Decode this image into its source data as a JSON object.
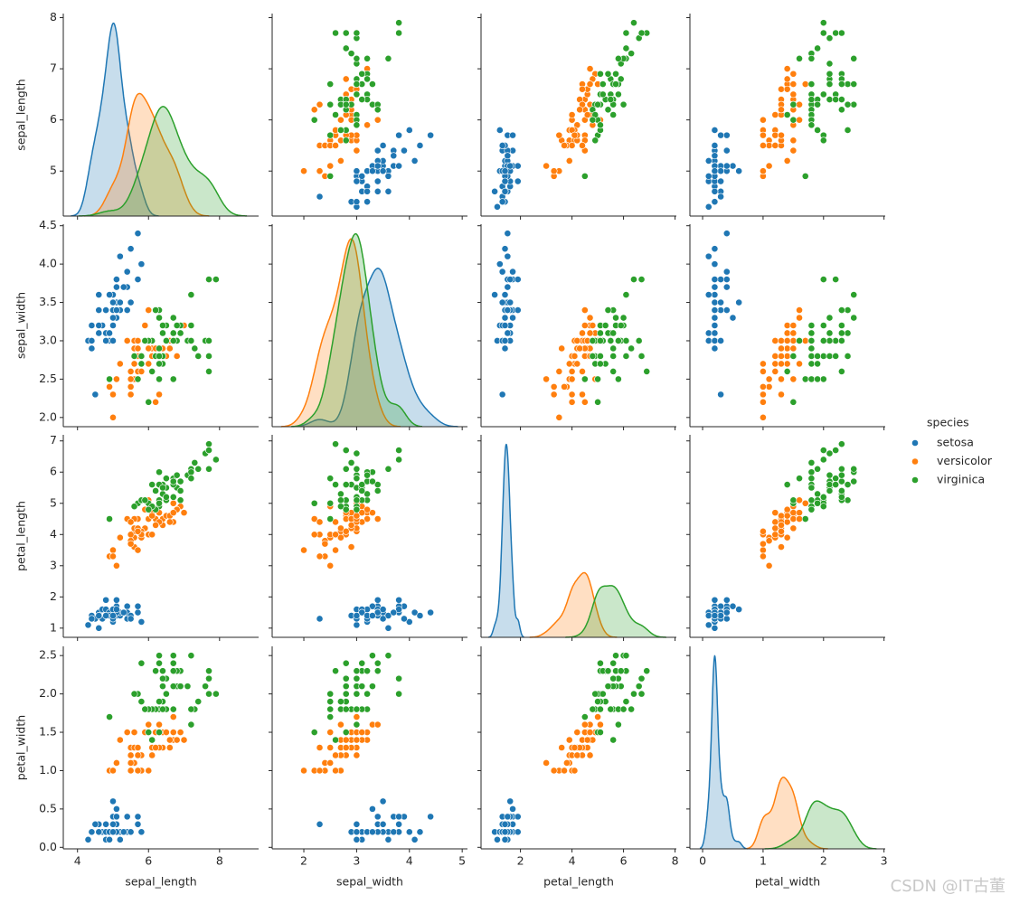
{
  "chart_data": {
    "type": "pairplot",
    "hue_title": "species",
    "watermark": "CSDN @IT古董",
    "vars": [
      {
        "label": "sepal_length",
        "xlim": [
          3.6,
          9.1
        ],
        "xticks": [
          4,
          6,
          8
        ],
        "ylim": [
          4.12,
          8.08
        ],
        "yticks": [
          5,
          6,
          7,
          8
        ]
      },
      {
        "label": "sepal_width",
        "xlim": [
          1.4,
          5.1
        ],
        "xticks": [
          2,
          3,
          4,
          5
        ],
        "ylim": [
          1.88,
          4.52
        ],
        "yticks": [
          {
            "value": 2,
            "label": "2.0"
          },
          {
            "value": 2.5,
            "label": "2.5"
          },
          {
            "value": 3,
            "label": "3.0"
          },
          {
            "value": 3.5,
            "label": "3.5"
          },
          {
            "value": 4,
            "label": "4.0"
          },
          {
            "value": 4.5,
            "label": "4.5"
          }
        ]
      },
      {
        "label": "petal_length",
        "xlim": [
          0.47,
          8.05
        ],
        "xticks": [
          2,
          4,
          6,
          8
        ],
        "ylim": [
          0.705,
          7.195
        ],
        "yticks": [
          1,
          2,
          3,
          4,
          5,
          6,
          7
        ]
      },
      {
        "label": "petal_width",
        "xlim": [
          -0.21,
          3.02
        ],
        "xticks": [
          0,
          1,
          2,
          3
        ],
        "ylim": [
          -0.02,
          2.62
        ],
        "yticks": [
          {
            "value": 0,
            "label": "0.0"
          },
          {
            "value": 0.5,
            "label": "0.5"
          },
          {
            "value": 1,
            "label": "1.0"
          },
          {
            "value": 1.5,
            "label": "1.5"
          },
          {
            "value": 2,
            "label": "2.0"
          },
          {
            "value": 2.5,
            "label": "2.5"
          }
        ]
      }
    ],
    "series": [
      {
        "name": "setosa",
        "color": "#1f77b4",
        "values": [
          [
            5.1,
            4.9,
            4.7,
            4.6,
            5.0,
            5.4,
            4.6,
            5.0,
            4.4,
            4.9,
            5.4,
            4.8,
            4.8,
            4.3,
            5.8,
            5.7,
            5.4,
            5.1,
            5.7,
            5.1,
            5.4,
            5.1,
            4.6,
            5.1,
            4.8,
            5.0,
            5.0,
            5.2,
            5.2,
            4.7,
            4.8,
            5.4,
            5.2,
            5.5,
            4.9,
            5.0,
            5.5,
            4.9,
            4.4,
            5.1,
            5.0,
            4.5,
            4.4,
            5.0,
            5.1,
            4.8,
            5.1,
            4.6,
            5.3,
            5.0
          ],
          [
            3.5,
            3.0,
            3.2,
            3.1,
            3.6,
            3.9,
            3.4,
            3.4,
            2.9,
            3.1,
            3.7,
            3.4,
            3.0,
            3.0,
            4.0,
            4.4,
            3.9,
            3.5,
            3.8,
            3.8,
            3.4,
            3.7,
            3.6,
            3.3,
            3.4,
            3.0,
            3.4,
            3.5,
            3.4,
            3.2,
            3.1,
            3.4,
            4.1,
            4.2,
            3.1,
            3.2,
            3.5,
            3.6,
            3.0,
            3.4,
            3.5,
            2.3,
            3.2,
            3.5,
            3.8,
            3.0,
            3.8,
            3.2,
            3.7,
            3.3
          ],
          [
            1.4,
            1.4,
            1.3,
            1.5,
            1.4,
            1.7,
            1.4,
            1.5,
            1.4,
            1.5,
            1.5,
            1.6,
            1.4,
            1.1,
            1.2,
            1.5,
            1.3,
            1.4,
            1.7,
            1.5,
            1.7,
            1.5,
            1.0,
            1.7,
            1.9,
            1.6,
            1.6,
            1.5,
            1.4,
            1.6,
            1.6,
            1.5,
            1.5,
            1.4,
            1.5,
            1.2,
            1.3,
            1.4,
            1.3,
            1.5,
            1.3,
            1.3,
            1.3,
            1.6,
            1.9,
            1.4,
            1.6,
            1.4,
            1.5,
            1.4
          ],
          [
            0.2,
            0.2,
            0.2,
            0.2,
            0.2,
            0.4,
            0.3,
            0.2,
            0.2,
            0.1,
            0.2,
            0.2,
            0.1,
            0.1,
            0.2,
            0.4,
            0.4,
            0.3,
            0.3,
            0.3,
            0.2,
            0.4,
            0.2,
            0.5,
            0.2,
            0.2,
            0.4,
            0.2,
            0.2,
            0.2,
            0.2,
            0.4,
            0.1,
            0.2,
            0.2,
            0.2,
            0.2,
            0.1,
            0.2,
            0.2,
            0.3,
            0.3,
            0.2,
            0.6,
            0.4,
            0.3,
            0.2,
            0.2,
            0.2,
            0.2
          ]
        ]
      },
      {
        "name": "versicolor",
        "color": "#ff7f0e",
        "values": [
          [
            7.0,
            6.4,
            6.9,
            5.5,
            6.5,
            5.7,
            6.3,
            4.9,
            6.6,
            5.2,
            5.0,
            5.9,
            6.0,
            6.1,
            5.6,
            6.7,
            5.6,
            5.8,
            6.2,
            5.6,
            5.9,
            6.1,
            6.3,
            6.1,
            6.4,
            6.6,
            6.8,
            6.7,
            6.0,
            5.7,
            5.5,
            5.5,
            5.8,
            6.0,
            5.4,
            6.0,
            6.7,
            6.3,
            5.6,
            5.5,
            5.5,
            6.1,
            5.8,
            5.0,
            5.6,
            5.7,
            5.7,
            6.2,
            5.1,
            5.7
          ],
          [
            3.2,
            3.2,
            3.1,
            2.3,
            2.8,
            2.8,
            3.3,
            2.4,
            2.9,
            2.7,
            2.0,
            3.0,
            2.2,
            2.9,
            2.9,
            3.1,
            3.0,
            2.7,
            2.2,
            2.5,
            3.2,
            2.8,
            2.5,
            2.8,
            2.9,
            3.0,
            2.8,
            3.0,
            2.9,
            2.6,
            2.4,
            2.4,
            2.7,
            2.7,
            3.0,
            3.4,
            3.1,
            2.3,
            3.0,
            2.5,
            2.6,
            3.0,
            2.6,
            2.3,
            2.7,
            3.0,
            2.9,
            2.9,
            2.5,
            2.8
          ],
          [
            4.7,
            4.5,
            4.9,
            4.0,
            4.6,
            4.5,
            4.7,
            3.3,
            4.6,
            3.9,
            3.5,
            4.2,
            4.0,
            4.7,
            3.6,
            4.4,
            4.5,
            4.1,
            4.5,
            3.9,
            4.8,
            4.0,
            4.9,
            4.7,
            4.3,
            4.4,
            4.8,
            5.0,
            4.5,
            3.5,
            3.8,
            3.7,
            3.9,
            5.1,
            4.5,
            4.5,
            4.7,
            4.4,
            4.1,
            4.0,
            4.4,
            4.6,
            4.0,
            3.3,
            4.2,
            4.2,
            4.2,
            4.3,
            3.0,
            4.1
          ],
          [
            1.4,
            1.5,
            1.5,
            1.3,
            1.5,
            1.3,
            1.6,
            1.0,
            1.3,
            1.4,
            1.0,
            1.5,
            1.0,
            1.4,
            1.3,
            1.4,
            1.5,
            1.0,
            1.5,
            1.1,
            1.8,
            1.3,
            1.5,
            1.2,
            1.3,
            1.4,
            1.4,
            1.7,
            1.5,
            1.0,
            1.1,
            1.0,
            1.2,
            1.6,
            1.5,
            1.6,
            1.5,
            1.3,
            1.3,
            1.3,
            1.2,
            1.4,
            1.2,
            1.0,
            1.3,
            1.2,
            1.3,
            1.3,
            1.1,
            1.3
          ]
        ]
      },
      {
        "name": "virginica",
        "color": "#2ca02c",
        "values": [
          [
            6.3,
            5.8,
            7.1,
            6.3,
            6.5,
            7.6,
            4.9,
            7.3,
            6.7,
            7.2,
            6.5,
            6.4,
            6.8,
            5.7,
            5.8,
            6.4,
            6.5,
            7.7,
            7.7,
            6.0,
            6.9,
            5.6,
            7.7,
            6.3,
            6.7,
            7.2,
            6.2,
            6.1,
            6.4,
            7.2,
            7.4,
            7.9,
            6.4,
            6.3,
            6.1,
            7.7,
            6.3,
            6.4,
            6.0,
            6.9,
            6.7,
            6.9,
            5.8,
            6.8,
            6.7,
            6.7,
            6.3,
            6.5,
            6.2,
            5.9
          ],
          [
            3.3,
            2.7,
            3.0,
            2.9,
            3.0,
            3.0,
            2.5,
            2.9,
            2.5,
            3.6,
            3.2,
            2.7,
            3.0,
            2.5,
            2.8,
            3.2,
            3.0,
            3.8,
            2.6,
            2.2,
            3.2,
            2.8,
            2.8,
            2.7,
            3.3,
            3.2,
            2.8,
            3.0,
            2.8,
            3.0,
            2.8,
            3.8,
            2.8,
            2.8,
            2.6,
            3.0,
            3.4,
            3.1,
            3.0,
            3.1,
            3.1,
            3.1,
            2.7,
            3.2,
            3.3,
            3.0,
            2.5,
            3.0,
            3.4,
            3.0
          ],
          [
            6.0,
            5.1,
            5.9,
            5.6,
            5.8,
            6.6,
            4.5,
            6.3,
            5.8,
            6.1,
            5.1,
            5.3,
            5.5,
            5.0,
            5.1,
            5.3,
            5.5,
            6.7,
            6.9,
            5.0,
            5.7,
            4.9,
            6.7,
            4.9,
            5.7,
            6.0,
            4.8,
            4.9,
            5.6,
            5.8,
            6.1,
            6.4,
            5.6,
            5.1,
            5.6,
            6.1,
            5.6,
            5.5,
            4.8,
            5.4,
            5.6,
            5.1,
            5.1,
            5.9,
            5.7,
            5.2,
            5.0,
            5.2,
            5.4,
            5.1
          ],
          [
            2.5,
            1.9,
            2.1,
            1.8,
            2.2,
            2.1,
            1.7,
            1.8,
            1.8,
            2.5,
            2.0,
            1.9,
            2.1,
            2.0,
            2.4,
            2.3,
            1.8,
            2.2,
            2.3,
            1.5,
            2.3,
            2.0,
            2.0,
            1.8,
            2.1,
            1.8,
            1.8,
            1.8,
            2.1,
            1.6,
            1.9,
            2.0,
            2.2,
            1.5,
            1.4,
            2.3,
            2.4,
            1.8,
            1.8,
            2.1,
            2.4,
            2.3,
            1.9,
            2.3,
            2.5,
            2.3,
            1.9,
            2.0,
            2.3,
            1.8
          ]
        ]
      }
    ]
  }
}
